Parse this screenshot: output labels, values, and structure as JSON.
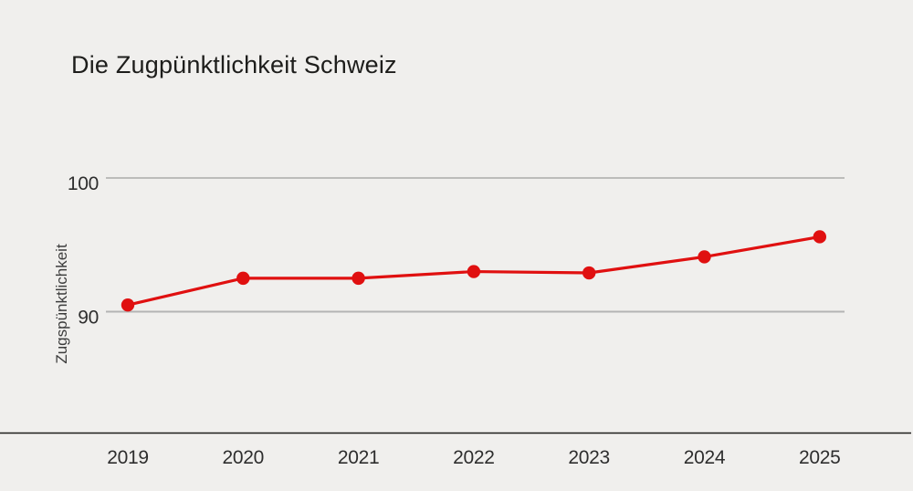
{
  "chart_data": {
    "type": "line",
    "title": "Die Zugpünktlichkeit Schweiz",
    "xlabel": "",
    "ylabel": "Zugspünktlichkeit",
    "x": [
      2019,
      2020,
      2021,
      2022,
      2023,
      2024,
      2025
    ],
    "series": [
      {
        "name": "Zugspünktlichkeit",
        "values": [
          90.5,
          92.5,
          92.5,
          93.0,
          92.9,
          94.1,
          95.6
        ]
      }
    ],
    "yticks": [
      90,
      100
    ],
    "ylim": [
      81,
      105.5
    ],
    "grid": "horizontal-only",
    "legend": "none",
    "marker": "filled-circle",
    "colors": {
      "line": "#e01010",
      "marker": "#e01010",
      "grid_top": "#9d9d9d",
      "grid_bottom": "#b4b4b4",
      "axis_line": "#1d1d1b",
      "text": "#2e2e2e",
      "background": "#f0efed",
      "title": "#1d1d1b"
    }
  }
}
